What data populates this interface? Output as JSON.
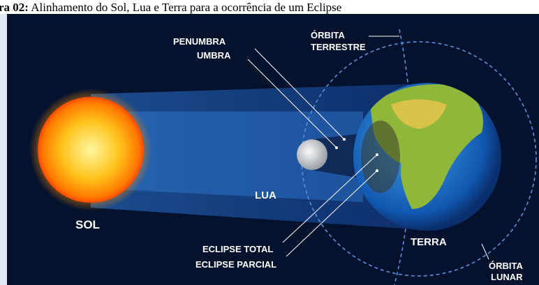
{
  "caption": {
    "label": "ra 02:",
    "text": "Alinhamento do Sol, Lua e Terra para a ocorrência de um Eclipse"
  },
  "labels": {
    "penumbra": "PENUMBRA",
    "umbra": "UMBRA",
    "orbita_terrestre": [
      "ÓRBITA",
      "TERRESTRE"
    ],
    "sol": "SOL",
    "lua": "LUA",
    "eclipse_total": "ECLIPSE TOTAL",
    "eclipse_parcial": "ECLIPSE PARCIAL",
    "terra": "TERRA",
    "orbita_lunar": [
      "ÓRBITA",
      "LUNAR"
    ]
  }
}
